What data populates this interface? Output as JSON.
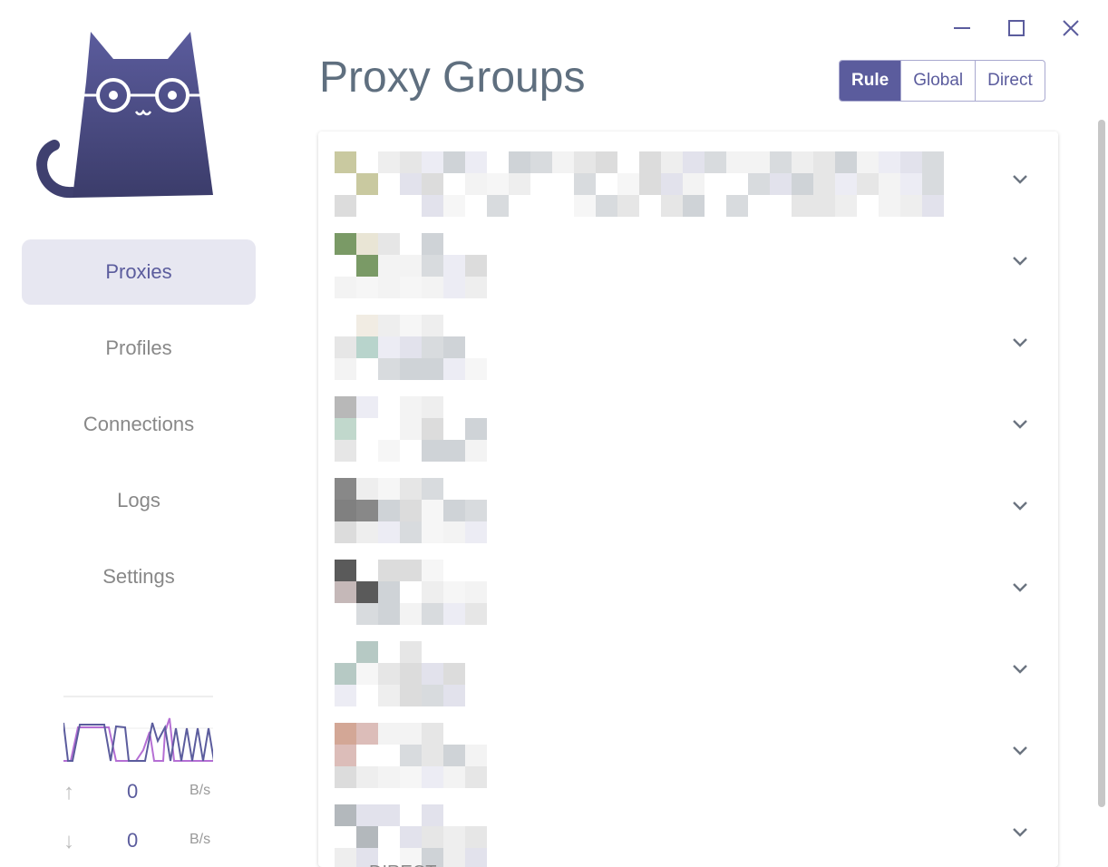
{
  "nav": {
    "items": [
      {
        "label": "Proxies",
        "active": true
      },
      {
        "label": "Profiles"
      },
      {
        "label": "Connections"
      },
      {
        "label": "Logs"
      },
      {
        "label": "Settings"
      }
    ]
  },
  "traffic": {
    "upload_value": "0",
    "upload_unit": "B/s",
    "download_value": "0",
    "download_unit": "B/s",
    "colors": {
      "up": "#b56fd4",
      "down": "#5b5c9d"
    }
  },
  "header": {
    "title": "Proxy Groups",
    "modes": [
      {
        "label": "Rule",
        "active": true
      },
      {
        "label": "Global"
      },
      {
        "label": "Direct"
      }
    ]
  },
  "groups": {
    "count": 9,
    "last_selected": "DIRECT"
  },
  "colors": {
    "accent": "#5b5c9d",
    "title": "#5f6f7f"
  }
}
